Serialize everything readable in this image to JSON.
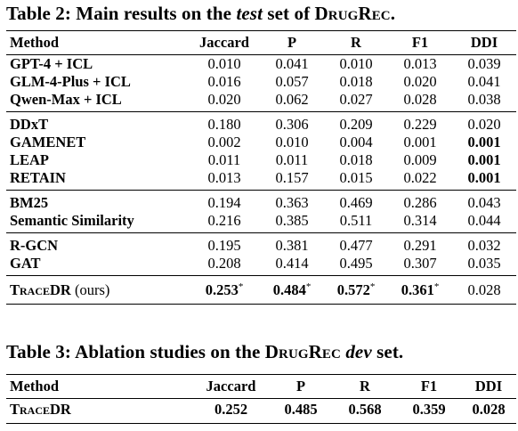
{
  "table2": {
    "caption_prefix": "Table 2: Main results on the ",
    "caption_italic": "test",
    "caption_middle": " set of ",
    "caption_dataset": "DrugRec",
    "caption_suffix": ".",
    "headers": [
      "Method",
      "Jaccard",
      "P",
      "R",
      "F1",
      "DDI"
    ],
    "groups": [
      [
        {
          "method": "GPT-4 + ICL",
          "values": [
            "0.010",
            "0.041",
            "0.010",
            "0.013",
            "0.039"
          ]
        },
        {
          "method": "GLM-4-Plus + ICL",
          "values": [
            "0.016",
            "0.057",
            "0.018",
            "0.020",
            "0.041"
          ]
        },
        {
          "method": "Qwen-Max + ICL",
          "values": [
            "0.020",
            "0.062",
            "0.027",
            "0.028",
            "0.038"
          ]
        }
      ],
      [
        {
          "method": "DDxT",
          "values": [
            "0.180",
            "0.306",
            "0.209",
            "0.229",
            "0.020"
          ]
        },
        {
          "method": "GAMENET",
          "values": [
            "0.002",
            "0.010",
            "0.004",
            "0.001",
            "0.001"
          ]
        },
        {
          "method": "LEAP",
          "values": [
            "0.011",
            "0.011",
            "0.018",
            "0.009",
            "0.001"
          ]
        },
        {
          "method": "RETAIN",
          "values": [
            "0.013",
            "0.157",
            "0.015",
            "0.022",
            "0.001"
          ]
        }
      ],
      [
        {
          "method": "BM25",
          "values": [
            "0.194",
            "0.363",
            "0.469",
            "0.286",
            "0.043"
          ]
        },
        {
          "method": "Semantic Similarity",
          "values": [
            "0.216",
            "0.385",
            "0.511",
            "0.314",
            "0.044"
          ]
        }
      ],
      [
        {
          "method": "R-GCN",
          "values": [
            "0.195",
            "0.381",
            "0.477",
            "0.291",
            "0.032"
          ]
        },
        {
          "method": "GAT",
          "values": [
            "0.208",
            "0.414",
            "0.495",
            "0.307",
            "0.035"
          ]
        }
      ]
    ],
    "ours": {
      "method": "TraceDR",
      "suffix": " (ours)",
      "values": [
        "0.253",
        "0.484",
        "0.572",
        "0.361",
        "0.028"
      ],
      "mark": "*"
    }
  },
  "table3": {
    "caption_prefix": "Table 3: Ablation studies on the ",
    "caption_dataset": "DrugRec",
    "caption_space": " ",
    "caption_italic": "dev",
    "caption_suffix": " set.",
    "headers": [
      "Method",
      "Jaccard",
      "P",
      "R",
      "F1",
      "DDI"
    ],
    "rows": [
      {
        "method": "TraceDR",
        "values": [
          "0.252",
          "0.485",
          "0.568",
          "0.359",
          "0.028"
        ]
      }
    ]
  }
}
